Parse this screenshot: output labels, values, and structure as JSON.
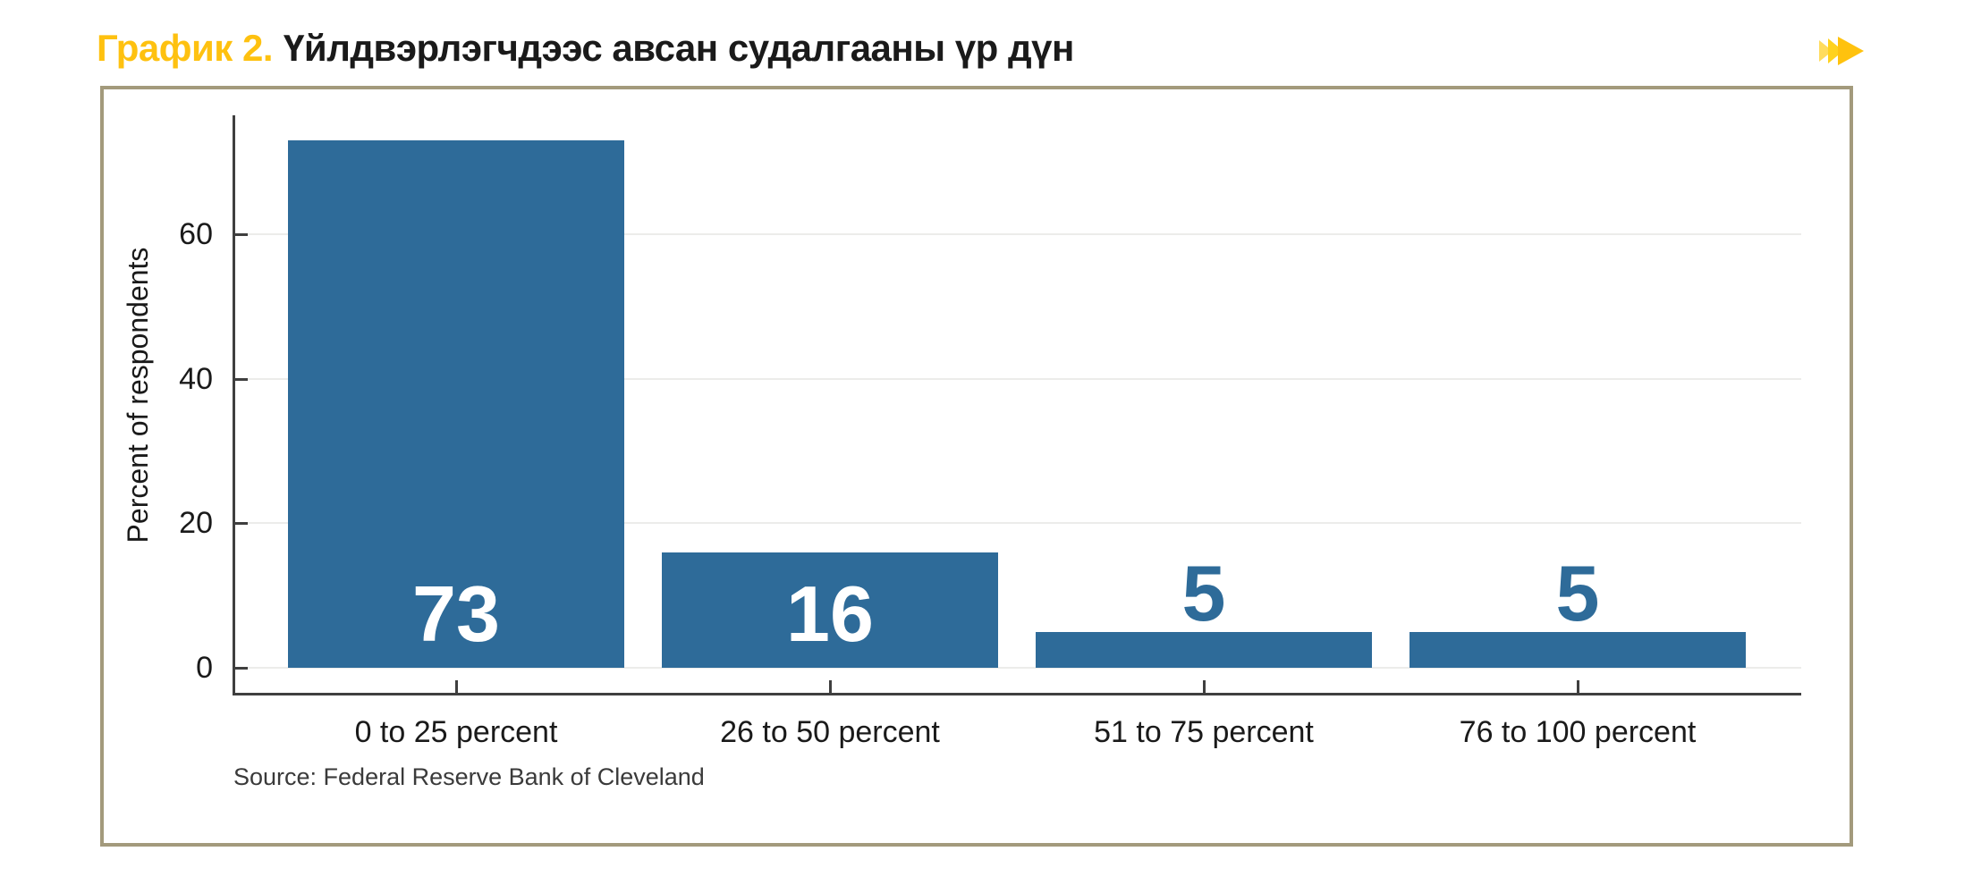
{
  "header": {
    "figure_label": "График 2.",
    "figure_title": "Үйлдвэрлэгчдээс авсан судалгааны үр дүн",
    "arrow_icon": "fast-forward-icon"
  },
  "colors": {
    "accent_yellow": "#FEC110",
    "arrow_light": "#FFDC5E",
    "arrow_mid": "#FFD21E",
    "arrow_main": "#FFC20E",
    "box_border": "#A39A7C",
    "bar_blue": "#2E6B99",
    "axis_dark": "#3F3F3F",
    "gridline": "#ECECEA",
    "text_black": "#1A1A1A",
    "source_text": "#3A3A3A"
  },
  "chart_data": {
    "type": "bar",
    "title": "",
    "xlabel": "",
    "ylabel": "Percent of respondents",
    "categories": [
      "0 to 25 percent",
      "26 to 50 percent",
      "51 to 75 percent",
      "76 to 100 percent"
    ],
    "values": [
      73,
      16,
      5,
      5
    ],
    "yticks": [
      0,
      20,
      40,
      60
    ],
    "ylim": [
      0,
      76.5
    ],
    "grid": true,
    "legend_position": "none",
    "bar_color": "#2E6B99",
    "value_label_placement": [
      "inside",
      "inside",
      "above",
      "above"
    ],
    "value_label_colors": [
      "#FFFFFF",
      "#FFFFFF",
      "#2E6B99",
      "#2E6B99"
    ],
    "source_note": "Source: Federal Reserve Bank of Cleveland"
  }
}
